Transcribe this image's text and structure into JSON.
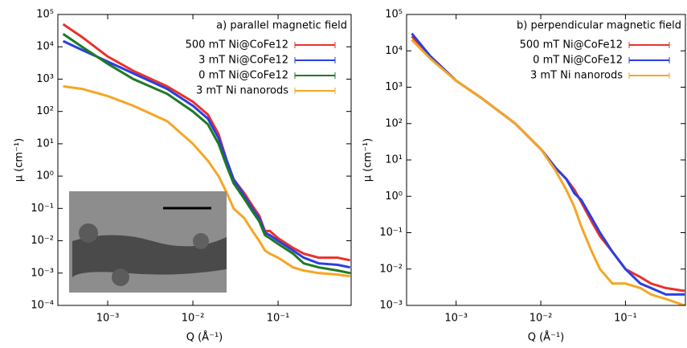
{
  "chart_data": [
    {
      "type": "line",
      "title": "a) parallel magnetic field",
      "x_label": "Q (Å⁻¹)",
      "y_label": "μ (cm⁻¹)",
      "xscale": "log",
      "yscale": "log",
      "legend": "upper right",
      "xlim": [
        0.00026,
        0.72
      ],
      "ylim": [
        0.0001,
        100000
      ],
      "xticks": [
        {
          "value": 0.001,
          "label": "10⁻³"
        },
        {
          "value": 0.01,
          "label": "10⁻²"
        },
        {
          "value": 0.1,
          "label": "10⁻¹"
        }
      ],
      "yticks": [
        {
          "value": 0.0001,
          "label": "10⁻⁴"
        },
        {
          "value": 0.001,
          "label": "10⁻³"
        },
        {
          "value": 0.01,
          "label": "10⁻²"
        },
        {
          "value": 0.1,
          "label": "10⁻¹"
        },
        {
          "value": 1,
          "label": "10⁰"
        },
        {
          "value": 10,
          "label": "10¹"
        },
        {
          "value": 100,
          "label": "10²"
        },
        {
          "value": 1000,
          "label": "10³"
        },
        {
          "value": 10000,
          "label": "10⁴"
        },
        {
          "value": 100000,
          "label": "10⁵"
        }
      ],
      "x": [
        0.0003,
        0.0005,
        0.001,
        0.002,
        0.005,
        0.01,
        0.015,
        0.02,
        0.025,
        0.03,
        0.04,
        0.05,
        0.06,
        0.07,
        0.08,
        0.1,
        0.15,
        0.2,
        0.3,
        0.5,
        0.7
      ],
      "series": [
        {
          "name": "500 mT Ni@CoFe12",
          "color": "#e8322b",
          "values": [
            50000,
            20000,
            5000,
            1800,
            600,
            200,
            80,
            20,
            3,
            0.8,
            0.3,
            0.12,
            0.06,
            0.02,
            0.02,
            0.012,
            0.006,
            0.004,
            0.003,
            0.003,
            0.0025
          ]
        },
        {
          "name": "3 mT Ni@CoFe12",
          "color": "#2b3fe0",
          "values": [
            15000,
            8000,
            3500,
            1500,
            500,
            150,
            60,
            15,
            3,
            0.8,
            0.25,
            0.1,
            0.05,
            0.018,
            0.015,
            0.01,
            0.005,
            0.003,
            0.002,
            0.0018,
            0.0015
          ]
        },
        {
          "name": "0 mT Ni@CoFe12",
          "color": "#1e7a24",
          "values": [
            25000,
            10000,
            3000,
            1000,
            350,
            100,
            40,
            10,
            2,
            0.6,
            0.2,
            0.08,
            0.04,
            0.015,
            0.012,
            0.008,
            0.004,
            0.002,
            0.0015,
            0.0012,
            0.001
          ]
        },
        {
          "name": "3 mT Ni nanorods",
          "color": "#f5a623",
          "values": [
            600,
            500,
            300,
            150,
            50,
            10,
            3,
            1,
            0.3,
            0.1,
            0.05,
            0.02,
            0.01,
            0.005,
            0.004,
            0.003,
            0.0015,
            0.0012,
            0.001,
            0.0009,
            0.0008
          ]
        }
      ]
    },
    {
      "type": "line",
      "title": "b) perpendicular magnetic field",
      "x_label": "Q (Å⁻¹)",
      "y_label": "μ (cm⁻¹)",
      "xscale": "log",
      "yscale": "log",
      "legend": "upper right",
      "xlim": [
        0.00026,
        0.51
      ],
      "ylim": [
        0.001,
        100000
      ],
      "xticks": [
        {
          "value": 0.001,
          "label": "10⁻³"
        },
        {
          "value": 0.01,
          "label": "10⁻²"
        },
        {
          "value": 0.1,
          "label": "10⁻¹"
        }
      ],
      "yticks": [
        {
          "value": 0.001,
          "label": "10⁻³"
        },
        {
          "value": 0.01,
          "label": "10⁻²"
        },
        {
          "value": 0.1,
          "label": "10⁻¹"
        },
        {
          "value": 1,
          "label": "10⁰"
        },
        {
          "value": 10,
          "label": "10¹"
        },
        {
          "value": 100,
          "label": "10²"
        },
        {
          "value": 1000,
          "label": "10³"
        },
        {
          "value": 10000,
          "label": "10⁴"
        },
        {
          "value": 100000,
          "label": "10⁵"
        }
      ],
      "x": [
        0.0003,
        0.0005,
        0.001,
        0.002,
        0.005,
        0.01,
        0.015,
        0.02,
        0.025,
        0.03,
        0.04,
        0.05,
        0.07,
        0.1,
        0.15,
        0.2,
        0.3,
        0.5
      ],
      "series": [
        {
          "name": "500 mT Ni@CoFe12",
          "color": "#e8322b",
          "values": [
            25000,
            7000,
            1500,
            500,
            100,
            20,
            6,
            3,
            1.5,
            0.7,
            0.2,
            0.08,
            0.03,
            0.01,
            0.006,
            0.004,
            0.003,
            0.0025
          ]
        },
        {
          "name": "0 mT Ni@CoFe12",
          "color": "#2b3fe0",
          "values": [
            30000,
            7000,
            1500,
            500,
            100,
            20,
            6,
            3,
            1.2,
            0.8,
            0.25,
            0.1,
            0.03,
            0.01,
            0.004,
            0.003,
            0.002,
            0.002
          ]
        },
        {
          "name": "3 mT Ni nanorods",
          "color": "#f5a623",
          "values": [
            20000,
            6000,
            1500,
            500,
            100,
            20,
            5,
            1.5,
            0.5,
            0.15,
            0.03,
            0.01,
            0.004,
            0.004,
            0.003,
            0.002,
            0.0015,
            0.001
          ]
        }
      ]
    }
  ]
}
